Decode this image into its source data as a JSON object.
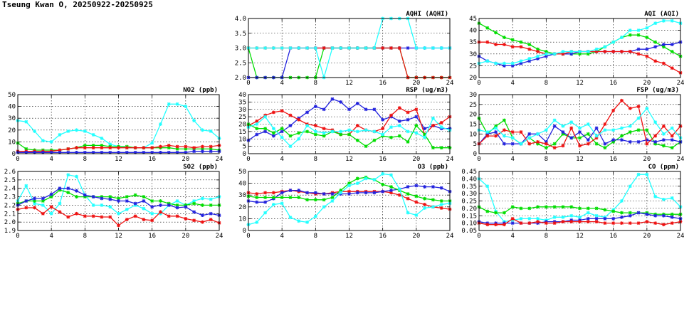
{
  "page": {
    "title": "Tseung Kwan O, 20250922-20250925"
  },
  "series_colors": {
    "green": "#00dd00",
    "blue": "#2222dd",
    "red": "#ee1111",
    "cyan": "#22ffff"
  },
  "chart_data": [
    {
      "id": "aqhi",
      "type": "line",
      "title": "AQHI (AQHI)",
      "ylim": [
        2,
        4
      ],
      "yticks": [
        "2.0",
        "2.5",
        "3.0",
        "3.5",
        "4.0"
      ],
      "xticks": [
        "0",
        "4",
        "8",
        "12",
        "16",
        "20",
        "24"
      ],
      "xlim": [
        0,
        24
      ],
      "series": [
        {
          "color": "green",
          "values": [
            3,
            2,
            2,
            2,
            2,
            2,
            2,
            2,
            2,
            3,
            3,
            3,
            3,
            3,
            3,
            3,
            3,
            3,
            3,
            2,
            2,
            2,
            2,
            2,
            2
          ]
        },
        {
          "color": "blue",
          "values": [
            2,
            2,
            2,
            2,
            2,
            3,
            3,
            3,
            3,
            3,
            3,
            3,
            3,
            3,
            3,
            3,
            3,
            3,
            3,
            3,
            3,
            3,
            3,
            3,
            3
          ]
        },
        {
          "color": "red",
          "values": [
            3,
            3,
            3,
            3,
            3,
            3,
            3,
            3,
            3,
            3,
            3,
            3,
            3,
            3,
            3,
            3,
            3,
            3,
            3,
            2,
            2,
            2,
            2,
            2,
            2
          ]
        },
        {
          "color": "cyan",
          "values": [
            3,
            3,
            3,
            3,
            3,
            3,
            3,
            3,
            3,
            2,
            3,
            3,
            3,
            3,
            3,
            3,
            4,
            4,
            4,
            4,
            3,
            3,
            3,
            3,
            3
          ]
        }
      ]
    },
    {
      "id": "aqi",
      "type": "line",
      "title": "AQI (AQI)",
      "ylim": [
        20,
        45
      ],
      "yticks": [
        "20",
        "25",
        "30",
        "35",
        "40",
        "45"
      ],
      "xticks": [
        "0",
        "4",
        "8",
        "12",
        "16",
        "20",
        "24"
      ],
      "xlim": [
        0,
        24
      ],
      "series": [
        {
          "color": "green",
          "values": [
            43,
            41,
            39,
            37,
            36,
            35,
            34,
            32,
            31,
            30,
            30,
            30,
            30,
            30,
            31,
            33,
            35,
            37,
            38,
            38,
            37,
            35,
            33,
            31,
            29
          ]
        },
        {
          "color": "blue",
          "values": [
            29,
            27,
            26,
            25,
            25,
            26,
            27,
            28,
            29,
            30,
            30,
            30,
            31,
            31,
            31,
            31,
            31,
            31,
            31,
            32,
            32,
            33,
            34,
            34,
            35
          ]
        },
        {
          "color": "red",
          "values": [
            35,
            35,
            34,
            34,
            33,
            33,
            32,
            31,
            30,
            30,
            30,
            31,
            31,
            31,
            31,
            31,
            31,
            31,
            31,
            30,
            29,
            27,
            26,
            24,
            22
          ]
        },
        {
          "color": "cyan",
          "values": [
            26,
            27,
            26,
            26,
            26,
            27,
            28,
            29,
            30,
            30,
            31,
            31,
            31,
            31,
            32,
            33,
            35,
            37,
            40,
            40,
            41,
            43,
            44,
            44,
            43
          ]
        }
      ]
    },
    {
      "id": "no2",
      "type": "line",
      "title": "NO2 (ppb)",
      "ylim": [
        0,
        50
      ],
      "yticks": [
        "0",
        "10",
        "20",
        "30",
        "40",
        "50"
      ],
      "xticks": [
        "0",
        "4",
        "8",
        "12",
        "16",
        "20",
        "24"
      ],
      "xlim": [
        0,
        24
      ],
      "series": [
        {
          "color": "cyan",
          "values": [
            28,
            27,
            19,
            11,
            10,
            16,
            19,
            20,
            19,
            16,
            13,
            8,
            6,
            5,
            5,
            5,
            9,
            25,
            42,
            42,
            40,
            28,
            20,
            19,
            13
          ]
        },
        {
          "color": "green",
          "values": [
            9,
            4,
            3,
            3,
            3,
            3,
            4,
            5,
            7,
            7,
            7,
            6,
            6,
            6,
            5,
            5,
            5,
            5,
            5,
            4,
            4,
            4,
            4,
            4,
            3
          ]
        },
        {
          "color": "red",
          "values": [
            2,
            2,
            2,
            2,
            2,
            3,
            4,
            5,
            5,
            5,
            5,
            5,
            5,
            5,
            5,
            5,
            5,
            6,
            7,
            6,
            6,
            5,
            6,
            6,
            7
          ]
        },
        {
          "color": "blue",
          "values": [
            1,
            1,
            1,
            1,
            1,
            1,
            1,
            1,
            1,
            1,
            1,
            1,
            1,
            1,
            1,
            1,
            1,
            1,
            1,
            1,
            1,
            2,
            2,
            2,
            2
          ]
        }
      ]
    },
    {
      "id": "rsp",
      "type": "line",
      "title": "RSP (ug/m3)",
      "ylim": [
        0,
        40
      ],
      "yticks": [
        "0",
        "5",
        "10",
        "15",
        "20",
        "25",
        "30",
        "35",
        "40"
      ],
      "xticks": [
        "0",
        "4",
        "8",
        "12",
        "16",
        "20",
        "24"
      ],
      "xlim": [
        0,
        24
      ],
      "series": [
        {
          "color": "blue",
          "values": [
            9,
            13,
            15,
            12,
            15,
            19,
            24,
            28,
            32,
            30,
            37,
            35,
            30,
            34,
            30,
            30,
            23,
            25,
            22,
            23,
            25,
            17,
            19,
            17,
            17
          ]
        },
        {
          "color": "red",
          "values": [
            19,
            22,
            26,
            28,
            29,
            26,
            23,
            20,
            19,
            17,
            16,
            13,
            13,
            19,
            16,
            15,
            17,
            26,
            31,
            28,
            30,
            13,
            19,
            21,
            25
          ]
        },
        {
          "color": "green",
          "values": [
            20,
            17,
            17,
            14,
            17,
            12,
            14,
            15,
            13,
            12,
            15,
            13,
            13,
            9,
            5,
            9,
            12,
            11,
            12,
            8,
            19,
            13,
            4,
            4,
            4
          ]
        },
        {
          "color": "cyan",
          "values": [
            18,
            20,
            25,
            17,
            11,
            5,
            10,
            19,
            15,
            14,
            15,
            15,
            16,
            15,
            16,
            15,
            13,
            18,
            19,
            15,
            14,
            11,
            24,
            18,
            16
          ]
        }
      ]
    },
    {
      "id": "fsp",
      "type": "line",
      "title": "FSP (ug/m3)",
      "ylim": [
        0,
        30
      ],
      "yticks": [
        "0",
        "5",
        "10",
        "15",
        "20",
        "25",
        "30"
      ],
      "xticks": [
        "0",
        "4",
        "8",
        "12",
        "16",
        "20",
        "24"
      ],
      "xlim": [
        0,
        24
      ],
      "series": [
        {
          "color": "green",
          "values": [
            18,
            10,
            14,
            17,
            8,
            5,
            8,
            5,
            3,
            5,
            10,
            8,
            8,
            10,
            5,
            3,
            6,
            9,
            11,
            12,
            12,
            5,
            4,
            3,
            6
          ]
        },
        {
          "color": "blue",
          "values": [
            5,
            10,
            11,
            5,
            5,
            5,
            10,
            10,
            6,
            14,
            11,
            8,
            11,
            7,
            13,
            5,
            7,
            7,
            6,
            6,
            7,
            6,
            7,
            7,
            6
          ]
        },
        {
          "color": "red",
          "values": [
            5,
            9,
            9,
            12,
            11,
            11,
            5,
            6,
            5,
            3,
            4,
            13,
            4,
            5,
            8,
            15,
            22,
            27,
            23,
            24,
            5,
            9,
            14,
            9,
            14
          ]
        },
        {
          "color": "cyan",
          "values": [
            12,
            11,
            13,
            9,
            8,
            5,
            8,
            10,
            12,
            17,
            14,
            16,
            13,
            15,
            9,
            12,
            12,
            13,
            14,
            18,
            23,
            16,
            10,
            13,
            8
          ]
        }
      ]
    },
    {
      "id": "so2",
      "type": "line",
      "title": "SO2 (ppb)",
      "ylim": [
        1.9,
        2.6
      ],
      "yticks": [
        "1.9",
        "2.0",
        "2.1",
        "2.2",
        "2.3",
        "2.4",
        "2.5",
        "2.6"
      ],
      "xticks": [
        "0",
        "4",
        "8",
        "12",
        "16",
        "20",
        "24"
      ],
      "xlim": [
        0,
        24
      ],
      "series": [
        {
          "color": "cyan",
          "values": [
            2.25,
            2.43,
            2.22,
            2.2,
            2.1,
            2.22,
            2.56,
            2.54,
            2.32,
            2.2,
            2.2,
            2.18,
            2.1,
            2.15,
            2.2,
            2.16,
            2.1,
            2.1,
            2.2,
            2.25,
            2.2,
            2.25,
            2.28,
            2.27,
            2.3
          ]
        },
        {
          "color": "green",
          "values": [
            2.22,
            2.25,
            2.25,
            2.25,
            2.3,
            2.38,
            2.35,
            2.3,
            2.3,
            2.3,
            2.3,
            2.3,
            2.28,
            2.3,
            2.32,
            2.3,
            2.25,
            2.25,
            2.22,
            2.2,
            2.2,
            2.22,
            2.2,
            2.2,
            2.2
          ]
        },
        {
          "color": "blue",
          "values": [
            2.2,
            2.25,
            2.28,
            2.28,
            2.33,
            2.4,
            2.4,
            2.37,
            2.32,
            2.3,
            2.28,
            2.27,
            2.25,
            2.25,
            2.22,
            2.25,
            2.18,
            2.2,
            2.2,
            2.17,
            2.18,
            2.12,
            2.08,
            2.1,
            2.08
          ]
        },
        {
          "color": "red",
          "values": [
            2.15,
            2.17,
            2.17,
            2.1,
            2.18,
            2.12,
            2.06,
            2.1,
            2.07,
            2.07,
            2.06,
            2.06,
            1.96,
            2.03,
            2.07,
            2.03,
            2.02,
            2.12,
            2.07,
            2.07,
            2.04,
            2.02,
            2.0,
            2.03,
            1.99
          ]
        }
      ]
    },
    {
      "id": "o3",
      "type": "line",
      "title": "O3 (ppb)",
      "ylim": [
        0,
        50
      ],
      "yticks": [
        "0",
        "10",
        "20",
        "30",
        "40",
        "50"
      ],
      "xticks": [
        "0",
        "4",
        "8",
        "12",
        "16",
        "20",
        "24"
      ],
      "xlim": [
        0,
        24
      ],
      "series": [
        {
          "color": "red",
          "values": [
            32,
            31,
            32,
            32,
            33,
            34,
            33,
            32,
            31,
            31,
            32,
            33,
            33,
            33,
            33,
            33,
            33,
            32,
            30,
            27,
            24,
            22,
            20,
            19,
            18
          ]
        },
        {
          "color": "blue",
          "values": [
            25,
            24,
            24,
            27,
            32,
            34,
            34,
            32,
            32,
            31,
            31,
            31,
            31,
            32,
            32,
            32,
            33,
            34,
            35,
            37,
            38,
            37,
            37,
            36,
            33
          ]
        },
        {
          "color": "green",
          "values": [
            29,
            28,
            28,
            28,
            28,
            28,
            28,
            26,
            26,
            26,
            28,
            34,
            40,
            44,
            45,
            43,
            39,
            37,
            34,
            31,
            29,
            27,
            26,
            25,
            25
          ]
        },
        {
          "color": "cyan",
          "values": [
            5,
            7,
            15,
            22,
            23,
            11,
            8,
            7,
            12,
            20,
            25,
            32,
            38,
            40,
            44,
            43,
            48,
            47,
            35,
            15,
            13,
            19,
            20,
            22,
            23
          ]
        }
      ]
    },
    {
      "id": "co",
      "type": "line",
      "title": "CO (ppm)",
      "ylim": [
        0.05,
        0.45
      ],
      "yticks": [
        "0.05",
        "0.10",
        "0.15",
        "0.20",
        "0.25",
        "0.30",
        "0.35",
        "0.40",
        "0.45"
      ],
      "xticks": [
        "0",
        "4",
        "8",
        "12",
        "16",
        "20",
        "24"
      ],
      "xlim": [
        0,
        24
      ],
      "series": [
        {
          "color": "cyan",
          "values": [
            0.4,
            0.35,
            0.18,
            0.11,
            0.12,
            0.13,
            0.13,
            0.13,
            0.12,
            0.14,
            0.14,
            0.15,
            0.14,
            0.17,
            0.15,
            0.14,
            0.19,
            0.25,
            0.35,
            0.43,
            0.43,
            0.28,
            0.26,
            0.27,
            0.21
          ]
        },
        {
          "color": "green",
          "values": [
            0.21,
            0.18,
            0.17,
            0.17,
            0.21,
            0.2,
            0.2,
            0.21,
            0.21,
            0.21,
            0.21,
            0.21,
            0.2,
            0.2,
            0.2,
            0.19,
            0.18,
            0.17,
            0.17,
            0.17,
            0.17,
            0.16,
            0.16,
            0.16,
            0.16
          ]
        },
        {
          "color": "blue",
          "values": [
            0.11,
            0.1,
            0.1,
            0.1,
            0.1,
            0.1,
            0.1,
            0.1,
            0.11,
            0.11,
            0.11,
            0.12,
            0.12,
            0.13,
            0.13,
            0.13,
            0.13,
            0.14,
            0.15,
            0.17,
            0.16,
            0.15,
            0.15,
            0.14,
            0.13
          ]
        },
        {
          "color": "red",
          "values": [
            0.1,
            0.09,
            0.09,
            0.09,
            0.13,
            0.1,
            0.1,
            0.11,
            0.1,
            0.1,
            0.11,
            0.11,
            0.11,
            0.11,
            0.11,
            0.1,
            0.1,
            0.1,
            0.1,
            0.1,
            0.11,
            0.1,
            0.09,
            0.1,
            0.11
          ]
        }
      ]
    }
  ]
}
